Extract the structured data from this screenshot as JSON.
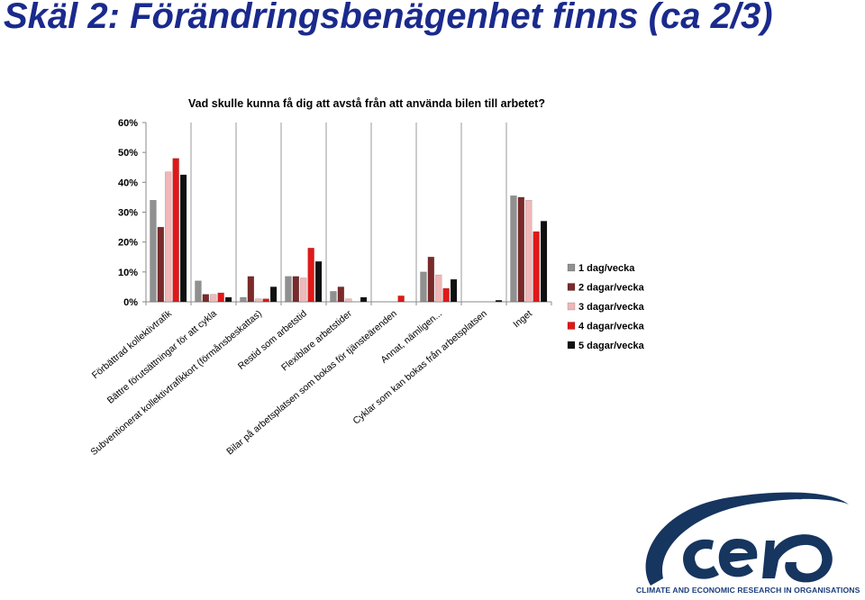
{
  "slide": {
    "title": "Skäl 2: Förändringsbenägenhet finns (ca 2/3)"
  },
  "logo": {
    "caption": "CLIMATE AND ECONOMIC RESEARCH IN ORGANISATIONS"
  },
  "chart_data": {
    "type": "bar",
    "title": "Vad skulle kunna få dig att avstå från att använda bilen till arbetet?",
    "xlabel": "",
    "ylabel": "",
    "ylim": [
      0,
      60
    ],
    "y_ticks": [
      "0%",
      "10%",
      "20%",
      "30%",
      "40%",
      "50%",
      "60%"
    ],
    "y_tick_values": [
      0,
      10,
      20,
      30,
      40,
      50,
      60
    ],
    "grid": false,
    "legend_position": "right",
    "categories": [
      "Förbättrad kollektivtrafik",
      "Bättre förutsättningar för att cykla",
      "Subventionerat kollektivtrafikkort (förmånsbeskattas)",
      "Restid som arbetstid",
      "Flexiblare arbetstider",
      "Bilar på arbetsplatsen som bokas för tjänsteärenden",
      "Annat, nämligen...",
      "Cyklar som kan bokas från arbetsplatsen",
      "Inget"
    ],
    "series": [
      {
        "name": "1 dag/vecka",
        "color": "#909090",
        "values": [
          34,
          7,
          1.5,
          8.5,
          3.5,
          0,
          10,
          0,
          35.5
        ]
      },
      {
        "name": "2 dagar/vecka",
        "color": "#7a2a2a",
        "values": [
          25,
          2.5,
          8.5,
          8.5,
          5,
          0,
          15,
          0,
          35
        ]
      },
      {
        "name": "3 dagar/vecka",
        "color": "#f0b8b8",
        "values": [
          43.5,
          2.5,
          1,
          8,
          1,
          0,
          9,
          0,
          34
        ]
      },
      {
        "name": "4 dagar/vecka",
        "color": "#e01818",
        "values": [
          48,
          3,
          1,
          18,
          0,
          2,
          4.5,
          0,
          23.5
        ]
      },
      {
        "name": "5 dagar/vecka",
        "color": "#101010",
        "values": [
          42.5,
          1.5,
          5,
          13.5,
          1.5,
          0,
          7.5,
          0.5,
          27
        ]
      }
    ]
  }
}
